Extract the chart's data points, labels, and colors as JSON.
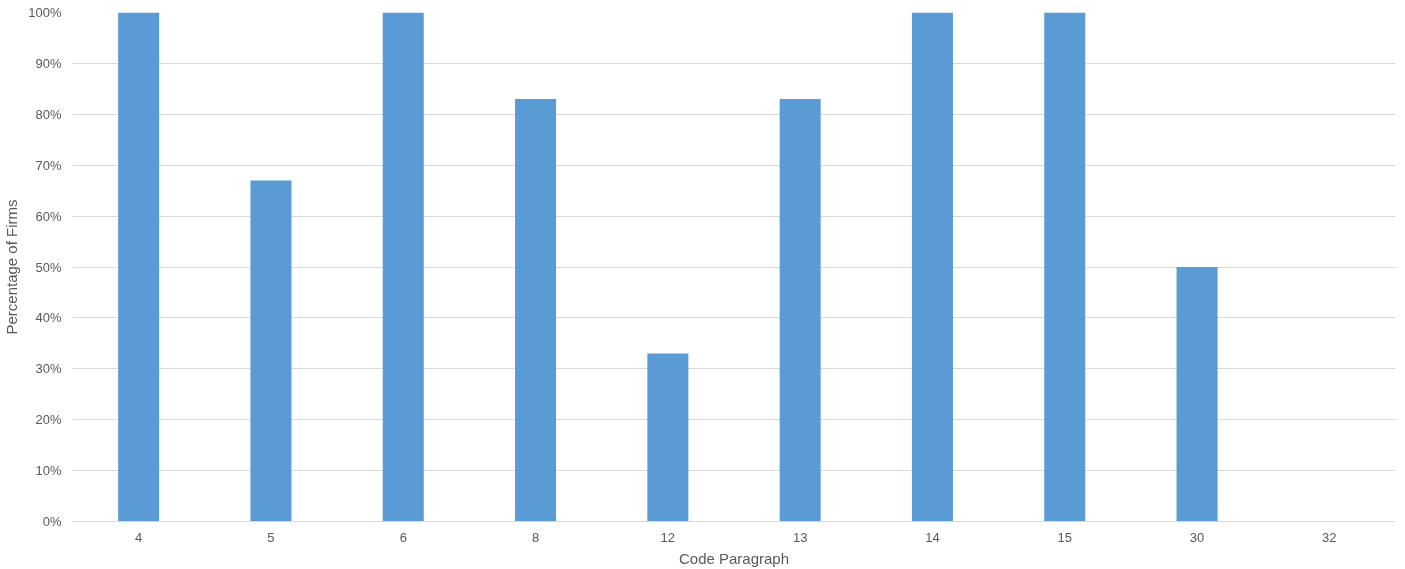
{
  "chart_data": {
    "type": "bar",
    "xlabel": "Code Paragraph",
    "ylabel": "Percentage of Firms",
    "categories": [
      "4",
      "5",
      "6",
      "8",
      "12",
      "13",
      "14",
      "15",
      "30",
      "32"
    ],
    "values": [
      100,
      67,
      100,
      83,
      33,
      83,
      100,
      100,
      50,
      0
    ],
    "color": "#5b9bd5",
    "ylim": [
      0,
      100
    ],
    "yticks": [
      {
        "value": 0,
        "label": "0%"
      },
      {
        "value": 10,
        "label": "10%"
      },
      {
        "value": 20,
        "label": "20%"
      },
      {
        "value": 30,
        "label": "30%"
      },
      {
        "value": 40,
        "label": "40%"
      },
      {
        "value": 50,
        "label": "50%"
      },
      {
        "value": 60,
        "label": "60%"
      },
      {
        "value": 70,
        "label": "70%"
      },
      {
        "value": 80,
        "label": "80%"
      },
      {
        "value": 90,
        "label": "90%"
      },
      {
        "value": 100,
        "label": "100%"
      }
    ],
    "grid": "y"
  }
}
